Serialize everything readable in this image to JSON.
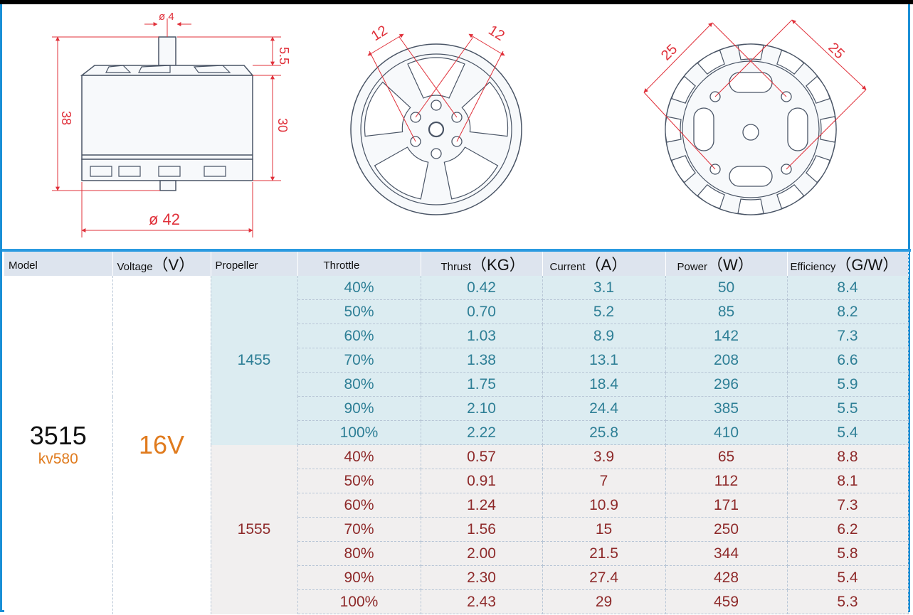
{
  "colors": {
    "accent": "#1a8fd6",
    "dimension_red": "#e0303a",
    "orange": "#e07b1e",
    "teal_text": "#2e7f96",
    "red_text": "#8e2a2a"
  },
  "drawings": {
    "side_view": {
      "dims": {
        "shaft": "ø 4",
        "shaft_len": "5.5",
        "total_height": "38",
        "body_height": "30",
        "diameter": "ø 42"
      }
    },
    "top_view": {
      "dims": {
        "left": "12",
        "right": "12"
      }
    },
    "bottom_view": {
      "dims": {
        "left": "25",
        "right": "25"
      }
    }
  },
  "table": {
    "headers": [
      {
        "label": "Model",
        "unit": ""
      },
      {
        "label": "Voltage",
        "unit": "（V）"
      },
      {
        "label": "Propeller",
        "unit": ""
      },
      {
        "label": "Throttle",
        "unit": ""
      },
      {
        "label": "Thrust",
        "unit": "（KG）"
      },
      {
        "label": "Current",
        "unit": "（A）"
      },
      {
        "label": "Power",
        "unit": "（W）"
      },
      {
        "label": "Efficiency",
        "unit": "（G/W）"
      }
    ],
    "model": {
      "name": "3515",
      "kv": "kv580"
    },
    "voltage": "16V",
    "groups": [
      {
        "propeller": "1455",
        "rows": [
          {
            "throttle": "40%",
            "thrust": "0.42",
            "current": "3.1",
            "power": "50",
            "efficiency": "8.4"
          },
          {
            "throttle": "50%",
            "thrust": "0.70",
            "current": "5.2",
            "power": "85",
            "efficiency": "8.2"
          },
          {
            "throttle": "60%",
            "thrust": "1.03",
            "current": "8.9",
            "power": "142",
            "efficiency": "7.3"
          },
          {
            "throttle": "70%",
            "thrust": "1.38",
            "current": "13.1",
            "power": "208",
            "efficiency": "6.6"
          },
          {
            "throttle": "80%",
            "thrust": "1.75",
            "current": "18.4",
            "power": "296",
            "efficiency": "5.9"
          },
          {
            "throttle": "90%",
            "thrust": "2.10",
            "current": "24.4",
            "power": "385",
            "efficiency": "5.5"
          },
          {
            "throttle": "100%",
            "thrust": "2.22",
            "current": "25.8",
            "power": "410",
            "efficiency": "5.4"
          }
        ]
      },
      {
        "propeller": "1555",
        "rows": [
          {
            "throttle": "40%",
            "thrust": "0.57",
            "current": "3.9",
            "power": "65",
            "efficiency": "8.8"
          },
          {
            "throttle": "50%",
            "thrust": "0.91",
            "current": "7",
            "power": "112",
            "efficiency": "8.1"
          },
          {
            "throttle": "60%",
            "thrust": "1.24",
            "current": "10.9",
            "power": "171",
            "efficiency": "7.3"
          },
          {
            "throttle": "70%",
            "thrust": "1.56",
            "current": "15",
            "power": "250",
            "efficiency": "6.2"
          },
          {
            "throttle": "80%",
            "thrust": "2.00",
            "current": "21.5",
            "power": "344",
            "efficiency": "5.8"
          },
          {
            "throttle": "90%",
            "thrust": "2.30",
            "current": "27.4",
            "power": "428",
            "efficiency": "5.4"
          },
          {
            "throttle": "100%",
            "thrust": "2.43",
            "current": "29",
            "power": "459",
            "efficiency": "5.3"
          }
        ]
      }
    ]
  }
}
